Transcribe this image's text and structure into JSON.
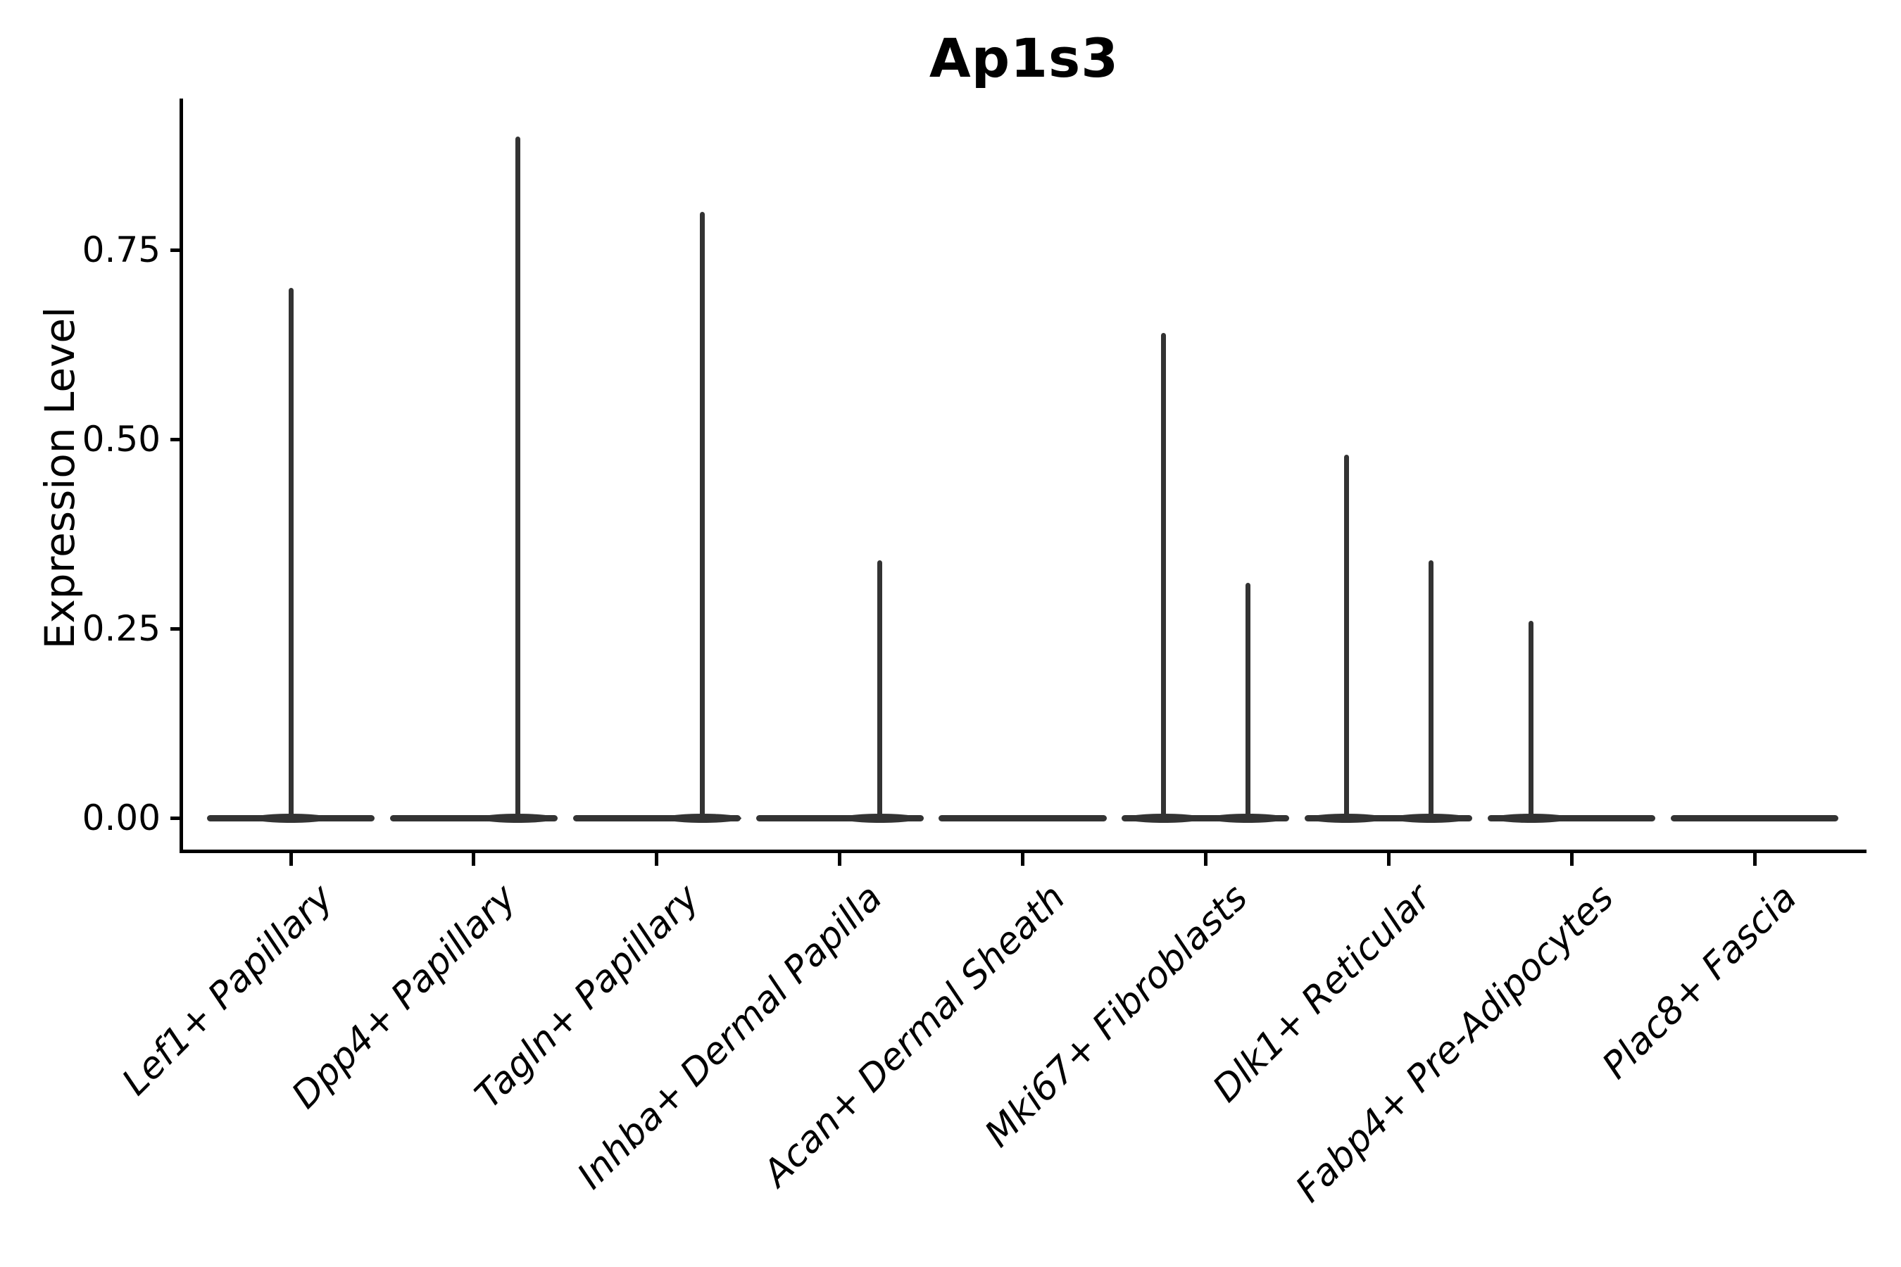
{
  "figure": {
    "title": "Ap1s3",
    "ylabel": "Expression Level"
  },
  "colors": {
    "violin": "#333333",
    "axis": "#000000",
    "text": "#000000"
  },
  "chart_data": {
    "type": "violin",
    "title": "Ap1s3",
    "xlabel": "",
    "ylabel": "Expression Level",
    "grid": false,
    "legend": false,
    "ylim": [
      -0.046,
      0.95
    ],
    "yticks": [
      {
        "label": "0.00",
        "value": 0.0
      },
      {
        "label": "0.25",
        "value": 0.25
      },
      {
        "label": "0.50",
        "value": 0.5
      },
      {
        "label": "0.75",
        "value": 0.75
      }
    ],
    "categories": [
      "Lef1+ Papillary",
      "Dpp4+ Papillary",
      "Tagln+ Papillary",
      "Inhba+ Dermal Papilla",
      "Acan+ Dermal Sheath",
      "Mki67+ Fibroblasts",
      "Dlk1+ Reticular",
      "Fabp4+ Pre-Adipocytes",
      "Plac8+ Fascia"
    ],
    "violin_half_width_frac": 0.458,
    "description": "Sparse single-cell expression: every cell type has a flat density mass at 0; thin spikes mark the maximum expression reached by rare expressing cells.",
    "violins": [
      {
        "category": "Lef1+ Papillary",
        "baseline": 0,
        "spikes": [
          {
            "offset_frac": 0.0,
            "max_expression": 0.7
          }
        ]
      },
      {
        "category": "Dpp4+ Papillary",
        "baseline": 0,
        "spikes": [
          {
            "offset_frac": 0.24,
            "max_expression": 0.9
          }
        ]
      },
      {
        "category": "Tagln+ Papillary",
        "baseline": 0,
        "spikes": [
          {
            "offset_frac": 0.25,
            "max_expression": 0.8
          }
        ]
      },
      {
        "category": "Inhba+ Dermal Papilla",
        "baseline": 0,
        "spikes": [
          {
            "offset_frac": 0.22,
            "max_expression": 0.34
          }
        ]
      },
      {
        "category": "Acan+ Dermal Sheath",
        "baseline": 0,
        "spikes": []
      },
      {
        "category": "Mki67+ Fibroblasts",
        "baseline": 0,
        "spikes": [
          {
            "offset_frac": -0.23,
            "max_expression": 0.64
          },
          {
            "offset_frac": 0.23,
            "max_expression": 0.31
          }
        ]
      },
      {
        "category": "Dlk1+ Reticular",
        "baseline": 0,
        "spikes": [
          {
            "offset_frac": -0.23,
            "max_expression": 0.48
          },
          {
            "offset_frac": 0.23,
            "max_expression": 0.34
          }
        ]
      },
      {
        "category": "Fabp4+ Pre-Adipocytes",
        "baseline": 0,
        "spikes": [
          {
            "offset_frac": -0.22,
            "max_expression": 0.26
          }
        ]
      },
      {
        "category": "Plac8+ Fascia",
        "baseline": 0,
        "spikes": []
      }
    ]
  }
}
